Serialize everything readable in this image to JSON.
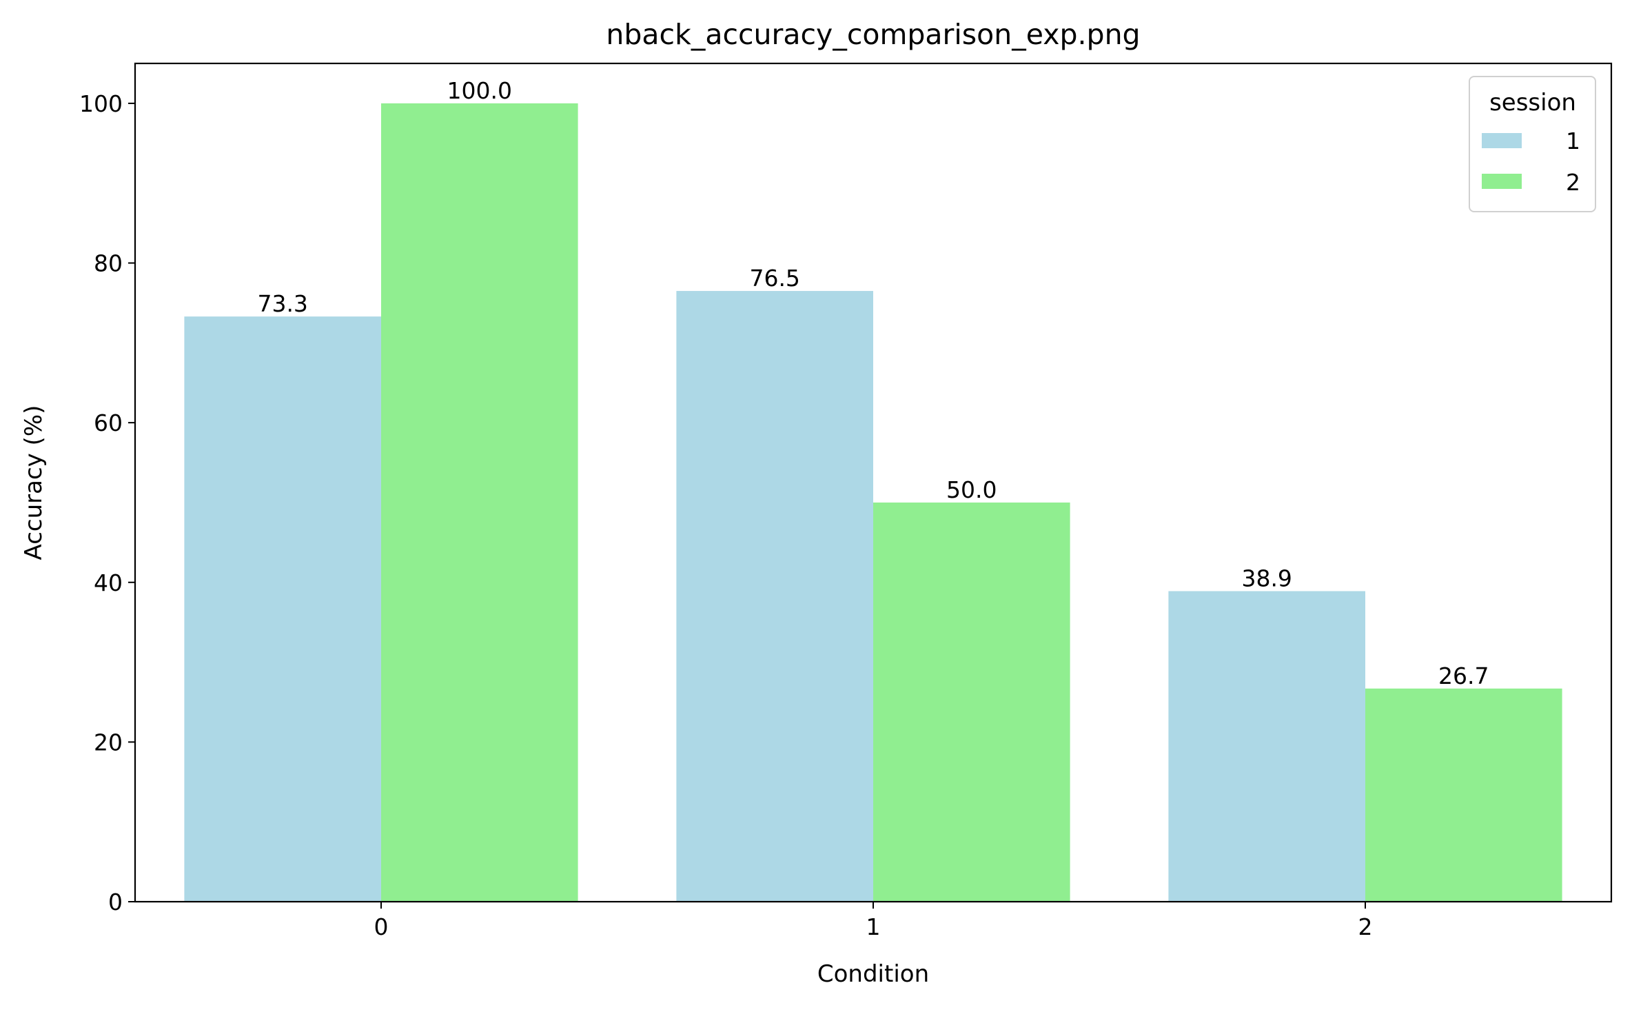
{
  "chart_data": {
    "type": "bar",
    "title": "nback_accuracy_comparison_exp.png",
    "xlabel": "Condition",
    "ylabel": "Accuracy (%)",
    "categories": [
      "0",
      "1",
      "2"
    ],
    "series": [
      {
        "name": "1",
        "values": [
          73.3,
          76.5,
          38.9
        ],
        "color": "#add8e6"
      },
      {
        "name": "2",
        "values": [
          100.0,
          50.0,
          26.7
        ],
        "color": "#90ee90"
      }
    ],
    "data_labels": [
      [
        "73.3",
        "76.5",
        "38.9"
      ],
      [
        "100.0",
        "50.0",
        "26.7"
      ]
    ],
    "ylim": [
      0,
      105
    ],
    "yticks": [
      0,
      20,
      40,
      60,
      80,
      100
    ],
    "grid": false,
    "legend": {
      "title": "session",
      "placement": "top-right"
    }
  }
}
